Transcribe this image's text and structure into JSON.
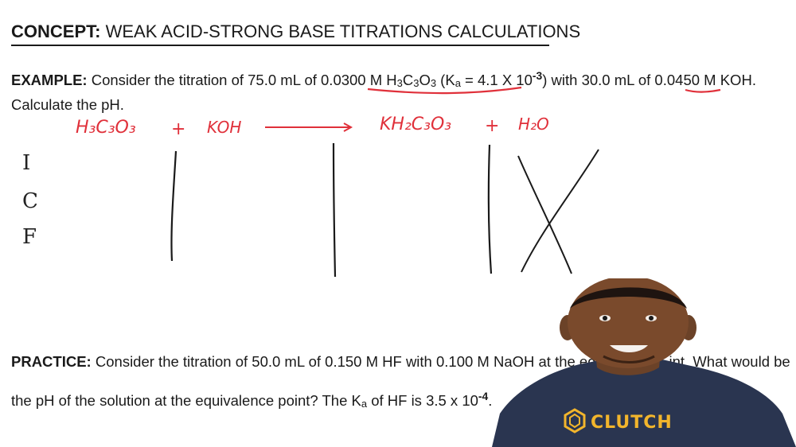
{
  "concept": {
    "label": "CONCEPT:",
    "title": "WEAK ACID-STRONG BASE TITRATIONS CALCULATIONS"
  },
  "example": {
    "label": "EXAMPLE:",
    "text_a": "Consider the titration of 75.0 mL of 0.0300 M ",
    "formula_a": "H",
    "formula_a_sub1": "3",
    "formula_b": "C",
    "formula_b_sub": "3",
    "formula_c": "O",
    "formula_c_sub": "3",
    "ka_open": " (K",
    "ka_sub": "a",
    "ka_eq": " = 4.1 X 10",
    "ka_exp": "-3",
    "ka_close": ")",
    "text_b": " with 30.0 mL of 0.0450 M ",
    "base": "KOH",
    "text_c": ".",
    "line2": "Calculate the pH."
  },
  "handwriting": {
    "reactant1": "H₃C₃O₃",
    "plus1": "+",
    "reactant2": "KOH",
    "product1": "KH₂C₃O₃",
    "plus2": "+",
    "product2": "H₂O",
    "row_i": "I",
    "row_c": "C",
    "row_f": "F"
  },
  "practice": {
    "label": "PRACTICE:",
    "line1": "Consider the titration of 50.0 mL of 0.150 M HF with 0.100 M NaOH at the eq",
    "line1_end": "int. What would be",
    "line2_a": "the pH of the solution at the equivalence point? The K",
    "line2_sub": "a",
    "line2_b": " of HF is 3.5 x 10",
    "line2_exp": "-4",
    "line2_c": "."
  },
  "presenter": {
    "shirt_logo": "CLUTCH"
  },
  "colors": {
    "ink": "#1a1a1a",
    "handwriting": "#e0303a",
    "shirt": "#2a3550",
    "logo": "#f2b52c"
  }
}
